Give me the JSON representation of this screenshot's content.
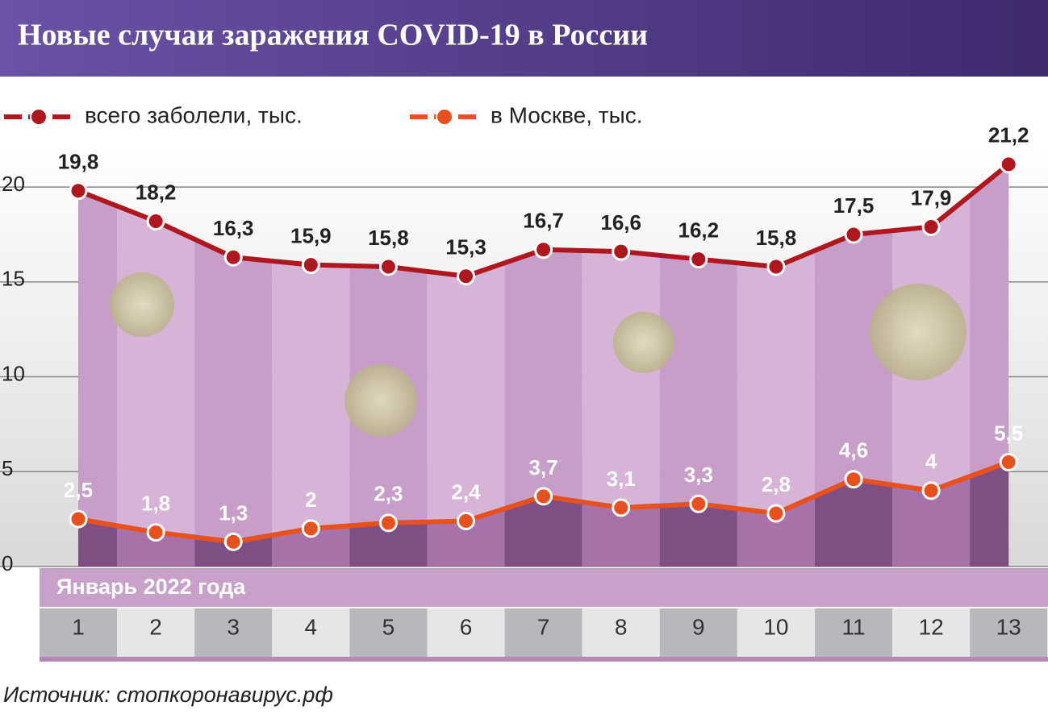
{
  "chart_data": {
    "type": "line",
    "title": "Новые случаи заражения COVID-19 в России",
    "xlabel": "Январь 2022 года",
    "source": "Источник: стопкоронавирус.рф",
    "categories": [
      "1",
      "2",
      "3",
      "4",
      "5",
      "6",
      "7",
      "8",
      "9",
      "10",
      "11",
      "12",
      "13"
    ],
    "series": [
      {
        "name": "всего заболели, тыс.",
        "color": "#b0161e",
        "values": [
          19.8,
          18.2,
          16.3,
          15.9,
          15.8,
          15.3,
          16.7,
          16.6,
          16.2,
          15.8,
          17.5,
          17.9,
          21.2
        ],
        "value_labels": [
          "19,8",
          "18,2",
          "16,3",
          "15,9",
          "15,8",
          "15,3",
          "16,7",
          "16,6",
          "16,2",
          "15,8",
          "17,5",
          "17,9",
          "21,2"
        ]
      },
      {
        "name": "в Москве, тыс.",
        "color": "#e8501e",
        "values": [
          2.5,
          1.8,
          1.3,
          2,
          2.3,
          2.4,
          3.7,
          3.1,
          3.3,
          2.8,
          4.6,
          4,
          5.5
        ],
        "value_labels": [
          "2,5",
          "1,8",
          "1,3",
          "2",
          "2,3",
          "2,4",
          "3,7",
          "3,1",
          "3,3",
          "2,8",
          "4,6",
          "4",
          "5,5"
        ]
      }
    ],
    "ylim": [
      0,
      22
    ],
    "yticks": [
      0,
      5,
      10,
      15,
      20
    ],
    "grid": true
  }
}
